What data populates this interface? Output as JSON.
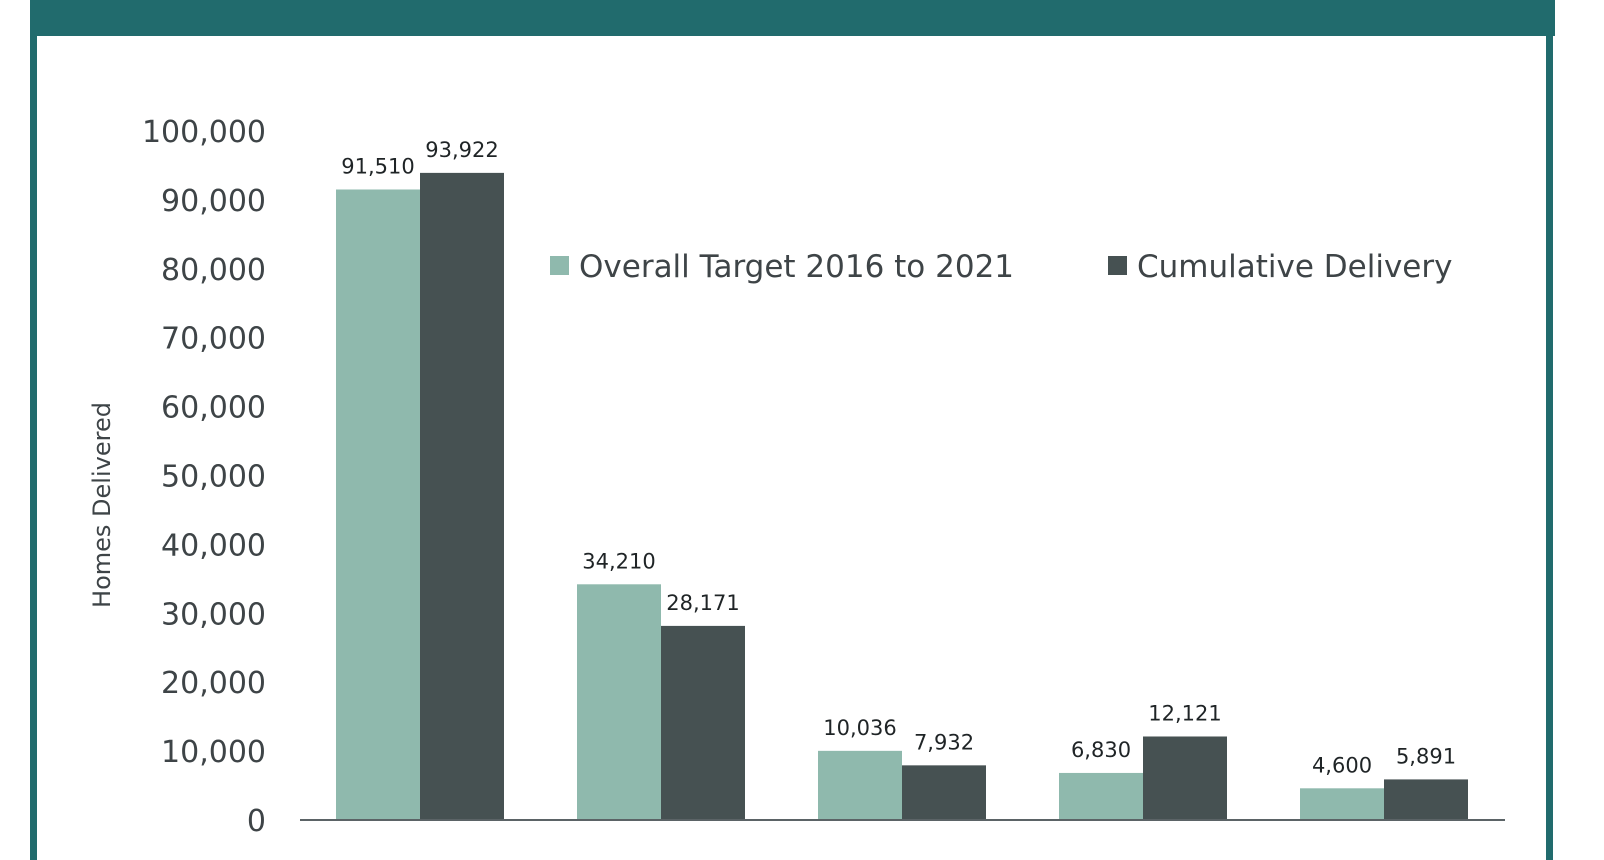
{
  "chart_data": {
    "type": "bar",
    "title": "",
    "xlabel": "",
    "ylabel": "Homes Delivered",
    "ylim": [
      0,
      100000
    ],
    "yticks": [
      "0",
      "10,000",
      "20,000",
      "30,000",
      "40,000",
      "50,000",
      "60,000",
      "70,000",
      "80,000",
      "90,000",
      "100,000"
    ],
    "ytick_values": [
      0,
      10000,
      20000,
      30000,
      40000,
      50000,
      60000,
      70000,
      80000,
      90000,
      100000
    ],
    "grid": false,
    "legend_position": "top-right",
    "categories": [
      "",
      "",
      "",
      "",
      ""
    ],
    "series": [
      {
        "name": "Overall Target 2016 to 2021",
        "color": "#8fb9ad",
        "values": [
          91510,
          34210,
          10036,
          6830,
          4600
        ],
        "labels": [
          "91,510",
          "34,210",
          "10,036",
          "6,830",
          "4,600"
        ]
      },
      {
        "name": "Cumulative Delivery",
        "color": "#465152",
        "values": [
          93922,
          28171,
          7932,
          12121,
          5891
        ],
        "labels": [
          "93,922",
          "28,171",
          "7,932",
          "12,121",
          "5,891"
        ]
      }
    ]
  },
  "colors": {
    "frame": "#216b6d",
    "axis": "#3e4447"
  }
}
